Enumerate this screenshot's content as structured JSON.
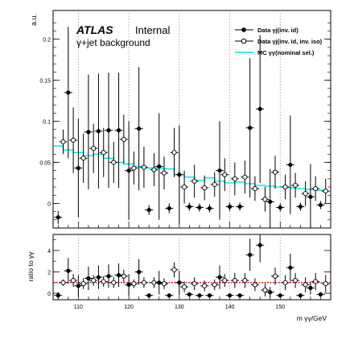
{
  "chart_data": [
    {
      "type": "scatter",
      "experiment": "ATLAS",
      "status": "Internal",
      "subtitle": "γ+jet background",
      "ylabel": "a.u.",
      "ylim": [
        -0.03,
        0.235
      ],
      "yticks": [
        0,
        0.05,
        0.1,
        0.15,
        0.2
      ],
      "ytick_labels": [
        "0",
        "0.05",
        "0.1",
        "0.15",
        "0.2"
      ],
      "xlim": [
        105,
        160
      ],
      "grid": "vertical dotted at x ticks",
      "legend_position": "top-right",
      "legend": [
        {
          "label": "Data γj(inv. id)",
          "marker": "filled-circle"
        },
        {
          "label": "Data γj(inv. id, inv. iso)",
          "marker": "open-circle"
        },
        {
          "label": "MC γγ(nominal sel.)",
          "marker": "cyan-line"
        }
      ],
      "series": [
        {
          "name": "Data γj(inv. id)",
          "marker": "filled",
          "x": [
            106,
            108,
            110,
            112,
            114,
            116,
            118,
            120,
            122,
            124,
            126,
            128,
            130,
            132,
            134,
            136,
            138,
            140,
            142,
            144,
            146,
            148,
            150,
            152,
            154,
            156,
            158
          ],
          "y": [
            -0.017,
            0.135,
            0.043,
            0.087,
            0.088,
            0.089,
            0.089,
            0.04,
            0.091,
            -0.008,
            0.045,
            -0.006,
            0.035,
            -0.004,
            -0.005,
            -0.006,
            0.04,
            -0.004,
            -0.004,
            0.092,
            0.115,
            0.002,
            -0.005,
            0.047,
            -0.004,
            0.008,
            -0.002
          ],
          "err": [
            0.008,
            0.08,
            0.06,
            0.07,
            0.07,
            0.07,
            0.07,
            0.06,
            0.075,
            0.006,
            0.065,
            0.006,
            0.06,
            0.005,
            0.005,
            0.005,
            0.06,
            0.005,
            0.005,
            0.085,
            0.09,
            0.04,
            0.005,
            0.06,
            0.005,
            0.04,
            0.005
          ]
        },
        {
          "name": "Data γj(inv. id, inv. iso)",
          "marker": "open",
          "x": [
            107,
            109,
            111,
            113,
            115,
            117,
            119,
            121,
            123,
            125,
            127,
            129,
            131,
            133,
            135,
            137,
            139,
            141,
            143,
            145,
            147,
            149,
            151,
            153,
            155,
            157,
            159
          ],
          "y": [
            0.075,
            0.077,
            0.055,
            0.067,
            0.062,
            0.05,
            0.078,
            0.043,
            0.044,
            0.041,
            0.037,
            0.062,
            0.02,
            0.027,
            0.019,
            0.023,
            0.035,
            0.03,
            0.032,
            0.018,
            0.005,
            0.038,
            0.02,
            0.022,
            0.012,
            0.018,
            0.015
          ],
          "err": [
            0.015,
            0.04,
            0.03,
            0.03,
            0.03,
            0.025,
            0.03,
            0.02,
            0.025,
            0.02,
            0.02,
            0.03,
            0.02,
            0.02,
            0.015,
            0.015,
            0.02,
            0.02,
            0.02,
            0.015,
            0.015,
            0.02,
            0.015,
            0.015,
            0.015,
            0.015,
            0.015
          ]
        },
        {
          "name": "MC γγ(nominal sel.)",
          "type": "step",
          "color": "#00e5ee",
          "edges": [
            105,
            107,
            109,
            111,
            113,
            115,
            117,
            119,
            121,
            123,
            125,
            127,
            129,
            131,
            133,
            135,
            137,
            139,
            141,
            143,
            145,
            147,
            149,
            151,
            153,
            155,
            157,
            159
          ],
          "values": [
            0.07,
            0.065,
            0.062,
            0.058,
            0.06,
            0.055,
            0.05,
            0.048,
            0.045,
            0.043,
            0.043,
            0.042,
            0.035,
            0.032,
            0.028,
            0.031,
            0.027,
            0.025,
            0.026,
            0.024,
            0.022,
            0.021,
            0.02,
            0.019,
            0.018,
            0.017,
            0.016
          ]
        }
      ]
    },
    {
      "type": "scatter",
      "ylabel": "ratio to γγ",
      "xlabel": "m γγ/GeV",
      "ylim": [
        -0.6,
        5.5
      ],
      "yticks": [
        0,
        2,
        4
      ],
      "ytick_labels": [
        "0",
        "2",
        "4"
      ],
      "xlim": [
        105,
        160
      ],
      "xticks": [
        110,
        120,
        130,
        140,
        150
      ],
      "xtick_labels": [
        "110",
        "120",
        "130",
        "140",
        "150"
      ],
      "reference_line": {
        "y": 1,
        "style": "dashed",
        "color": "#d00000"
      },
      "series": [
        {
          "name": "Data γj(inv. id)",
          "marker": "filled",
          "x": [
            106,
            108,
            110,
            112,
            114,
            116,
            118,
            120,
            122,
            124,
            126,
            128,
            130,
            132,
            134,
            136,
            138,
            140,
            142,
            144,
            146,
            148,
            150,
            152,
            154,
            156,
            158
          ],
          "y": [
            -0.2,
            2.1,
            0.7,
            1.4,
            1.5,
            1.6,
            1.7,
            0.8,
            2.0,
            -0.2,
            1.0,
            -0.2,
            1.0,
            -0.1,
            -0.2,
            -0.2,
            1.5,
            -0.2,
            -0.2,
            3.6,
            4.5,
            0.1,
            -0.2,
            2.4,
            -0.2,
            0.5,
            -0.1
          ],
          "err": [
            0.3,
            1.2,
            1.0,
            1.1,
            1.1,
            1.1,
            1.1,
            1.0,
            1.2,
            0.2,
            1.1,
            0.2,
            1.1,
            0.2,
            0.2,
            0.2,
            1.1,
            0.2,
            0.2,
            1.5,
            1.6,
            0.5,
            0.2,
            1.3,
            0.2,
            0.6,
            0.2
          ]
        },
        {
          "name": "Data γj(inv. id, inv. iso)",
          "marker": "open",
          "x": [
            107,
            109,
            111,
            113,
            115,
            117,
            119,
            121,
            123,
            125,
            127,
            129,
            131,
            133,
            135,
            137,
            139,
            141,
            143,
            145,
            147,
            149,
            151,
            153,
            155,
            157,
            159
          ],
          "y": [
            1.0,
            1.2,
            0.9,
            1.2,
            1.1,
            1.0,
            1.6,
            0.9,
            1.0,
            1.0,
            0.9,
            2.2,
            0.6,
            0.9,
            0.7,
            0.8,
            1.2,
            1.2,
            1.2,
            0.8,
            0.3,
            1.6,
            1.0,
            1.2,
            0.8,
            1.1,
            0.9
          ],
          "err": [
            0.3,
            0.6,
            0.5,
            0.5,
            0.5,
            0.5,
            0.6,
            0.4,
            0.5,
            0.5,
            0.5,
            0.7,
            0.5,
            0.6,
            0.5,
            0.5,
            0.6,
            0.7,
            0.7,
            0.6,
            0.6,
            0.8,
            0.7,
            0.7,
            0.7,
            0.8,
            0.8
          ]
        }
      ]
    }
  ]
}
